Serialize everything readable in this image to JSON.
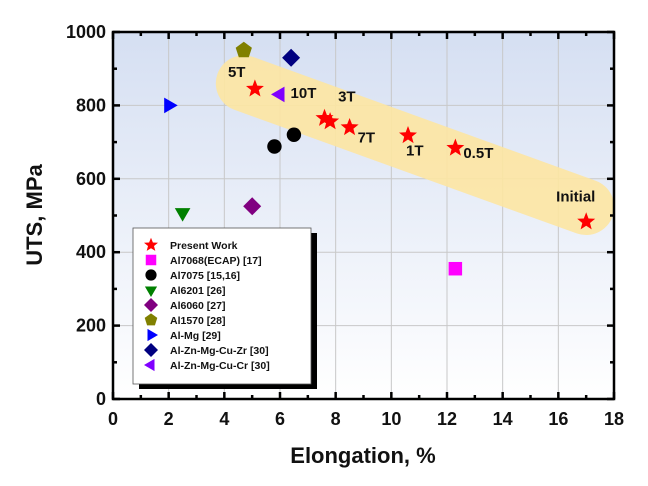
{
  "chart_data": {
    "type": "scatter",
    "title": "",
    "xlabel": "Elongation, %",
    "ylabel": "UTS, MPa",
    "xlim": [
      0,
      18
    ],
    "ylim": [
      0,
      1000
    ],
    "xticks": [
      "0",
      "2",
      "4",
      "6",
      "8",
      "10",
      "12",
      "14",
      "16",
      "18"
    ],
    "yticks": [
      "0",
      "200",
      "400",
      "600",
      "800",
      "1000"
    ],
    "grid": true,
    "legend_position": "bottom-left",
    "highlight_band": {
      "description": "yellow band enclosing Present Work points",
      "color": "#fde7a3"
    },
    "series": [
      {
        "name": "Present Work",
        "marker": "star",
        "color": "#ff0000",
        "points": [
          {
            "x": 5.1,
            "y": 845,
            "label": "5T"
          },
          {
            "x": 7.6,
            "y": 765,
            "label": "10T"
          },
          {
            "x": 7.8,
            "y": 756,
            "label": "3T"
          },
          {
            "x": 8.5,
            "y": 740,
            "label": "7T"
          },
          {
            "x": 10.6,
            "y": 718,
            "label": "1T"
          },
          {
            "x": 12.3,
            "y": 684,
            "label": "0.5T"
          },
          {
            "x": 17.0,
            "y": 483,
            "label": "Initial"
          }
        ]
      },
      {
        "name": "Al7068(ECAP) [17]",
        "marker": "square",
        "color": "#ff00ff",
        "points": [
          {
            "x": 12.3,
            "y": 355
          }
        ]
      },
      {
        "name": "Al7075 [15,16]",
        "marker": "circle",
        "color": "#000000",
        "points": [
          {
            "x": 5.8,
            "y": 688
          },
          {
            "x": 6.5,
            "y": 720
          }
        ]
      },
      {
        "name": "Al6201 [26]",
        "marker": "triangle-down",
        "color": "#008000",
        "points": [
          {
            "x": 2.5,
            "y": 508
          }
        ]
      },
      {
        "name": "Al6060 [27]",
        "marker": "diamond",
        "color": "#800080",
        "points": [
          {
            "x": 5.0,
            "y": 525
          }
        ]
      },
      {
        "name": "Al1570 [28]",
        "marker": "pentagon",
        "color": "#808000",
        "points": [
          {
            "x": 4.7,
            "y": 950
          }
        ]
      },
      {
        "name": "Al-Mg [29]",
        "marker": "triangle-right",
        "color": "#0000ff",
        "points": [
          {
            "x": 2.0,
            "y": 800
          }
        ]
      },
      {
        "name": "Al-Zn-Mg-Cu-Zr [30]",
        "marker": "diamond",
        "color": "#000080",
        "points": [
          {
            "x": 6.4,
            "y": 930
          }
        ]
      },
      {
        "name": "Al-Zn-Mg-Cu-Cr [30]",
        "marker": "triangle-left",
        "color": "#8000ff",
        "points": [
          {
            "x": 6.0,
            "y": 830
          }
        ]
      }
    ]
  }
}
